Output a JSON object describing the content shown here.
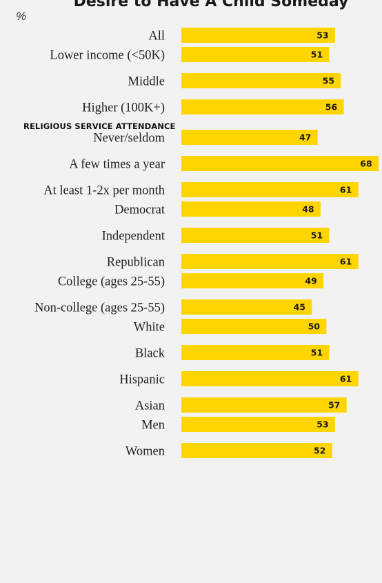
{
  "chart_data": {
    "type": "bar",
    "orientation": "horizontal",
    "title": "Desire to Have A Child Someday",
    "unit_label": "%",
    "xlim": [
      0,
      68
    ],
    "bar_color": "#ffd500",
    "grid": false,
    "legend": "none",
    "groups": [
      {
        "section_label": "",
        "rows": [
          {
            "label": "All",
            "value": 53
          }
        ]
      },
      {
        "section_label": "",
        "rows": [
          {
            "label": "Lower income (<50K)",
            "value": 51
          },
          {
            "label": "Middle",
            "value": 55
          },
          {
            "label": "Higher (100K+)",
            "value": 56
          }
        ]
      },
      {
        "section_label": "RELIGIOUS SERVICE ATTENDANCE",
        "rows": [
          {
            "label": "Never/seldom",
            "value": 47
          },
          {
            "label": "A few times a year",
            "value": 68
          },
          {
            "label": "At least 1-2x per month",
            "value": 61
          }
        ]
      },
      {
        "section_label": "",
        "rows": [
          {
            "label": "Democrat",
            "value": 48
          },
          {
            "label": "Independent",
            "value": 51
          },
          {
            "label": "Republican",
            "value": 61
          }
        ]
      },
      {
        "section_label": "",
        "rows": [
          {
            "label": "College (ages 25-55)",
            "value": 49
          },
          {
            "label": "Non-college (ages 25-55)",
            "value": 45
          }
        ]
      },
      {
        "section_label": "",
        "rows": [
          {
            "label": "White",
            "value": 50
          },
          {
            "label": "Black",
            "value": 51
          },
          {
            "label": "Hispanic",
            "value": 61
          },
          {
            "label": "Asian",
            "value": 57
          }
        ]
      },
      {
        "section_label": "",
        "rows": [
          {
            "label": "Men",
            "value": 53
          },
          {
            "label": "Women",
            "value": 52
          }
        ]
      }
    ]
  }
}
